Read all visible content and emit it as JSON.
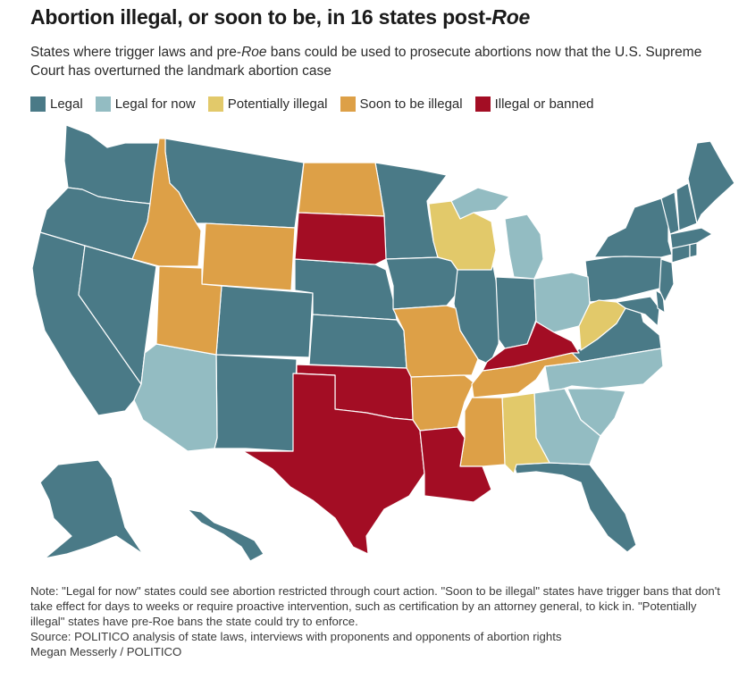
{
  "title": {
    "main": "Abortion illegal, or soon to be, in 16 states post-",
    "emph": "Roe"
  },
  "subtitle": {
    "part1": "States where trigger laws and pre-",
    "emph": "Roe",
    "part2": " bans could be used to prosecute abortions now that the U.S. Supreme Court has overturned the landmark abortion case"
  },
  "legend": [
    {
      "label": "Legal",
      "color": "#4a7a87"
    },
    {
      "label": "Legal for now",
      "color": "#93bcc2"
    },
    {
      "label": "Potentially illegal",
      "color": "#e2c96a"
    },
    {
      "label": "Soon to be illegal",
      "color": "#dda047"
    },
    {
      "label": "Illegal or banned",
      "color": "#a30d24"
    }
  ],
  "colors": {
    "legal": "#4a7a87",
    "legal_for_now": "#93bcc2",
    "potentially_illegal": "#e2c96a",
    "soon_illegal": "#dda047",
    "illegal": "#a30d24"
  },
  "notes": {
    "note": "Note: \"Legal for now\" states could see abortion restricted through court action. \"Soon to be illegal\" states have trigger bans that don't take effect for days to weeks or require proactive intervention, such as certification by an attorney general, to kick in. \"Potentially illegal\" states have pre-Roe bans the state could try to enforce.",
    "source": "Source: POLITICO analysis of state laws, interviews with proponents and opponents of abortion rights",
    "credit": "Megan Messerly / POLITICO"
  }
}
